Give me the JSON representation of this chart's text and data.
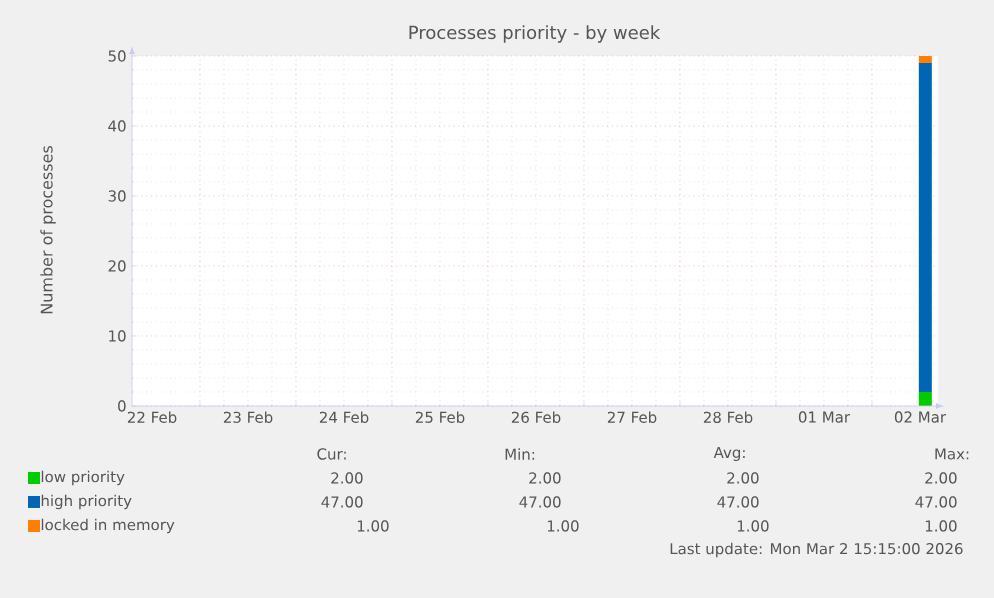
{
  "chart_data": {
    "type": "bar",
    "stacked": true,
    "title": "Processes priority - by week",
    "ylabel": "Number of processes",
    "x": [
      "2026-03-02T13:20"
    ],
    "series": [
      {
        "name": "low priority",
        "color": "#00cc00",
        "values": [
          2
        ]
      },
      {
        "name": "high priority",
        "color": "#0066b3",
        "values": [
          47
        ]
      },
      {
        "name": "locked in memory",
        "color": "#ff8000",
        "values": [
          1
        ]
      }
    ],
    "xlim": [
      "2026-02-22T07:00",
      "2026-03-02T16:30"
    ],
    "xticks": [
      {
        "value": "2026-02-23",
        "label": null
      },
      {
        "value": "2026-02-24",
        "label": null
      },
      {
        "value": "2026-02-25",
        "label": null
      },
      {
        "value": "2026-02-26",
        "label": null
      },
      {
        "value": "2026-02-27",
        "label": null
      },
      {
        "value": "2026-02-28",
        "label": null
      },
      {
        "value": "2026-03-01",
        "label": null
      },
      {
        "value": "2026-03-02",
        "label": null
      },
      {
        "value": "2026-02-22T12:00",
        "label": "22 Feb"
      },
      {
        "value": "2026-02-23T12:00",
        "label": "23 Feb"
      },
      {
        "value": "2026-02-24T12:00",
        "label": "24 Feb"
      },
      {
        "value": "2026-02-25T12:00",
        "label": "25 Feb"
      },
      {
        "value": "2026-02-26T12:00",
        "label": "26 Feb"
      },
      {
        "value": "2026-02-27T12:00",
        "label": "27 Feb"
      },
      {
        "value": "2026-02-28T12:00",
        "label": "28 Feb"
      },
      {
        "value": "2026-03-01T12:00",
        "label": "01 Mar"
      },
      {
        "value": "2026-03-02T12:00",
        "label": "02 Mar"
      }
    ],
    "ylim": [
      0,
      50
    ],
    "yticks": [
      0,
      10,
      20,
      30,
      40,
      50
    ],
    "grid": true,
    "legend": "bottom",
    "annotations": [
      "Cur:",
      "Min:",
      "Avg:",
      "Max:",
      "2.00",
      "2.00",
      "2.00",
      "2.00",
      "47.00",
      "47.00",
      "47.00",
      "47.00",
      "1.00",
      "1.00",
      "1.00",
      "1.00",
      "Last update: Mon Mar  2 15:15:00 2026"
    ]
  }
}
